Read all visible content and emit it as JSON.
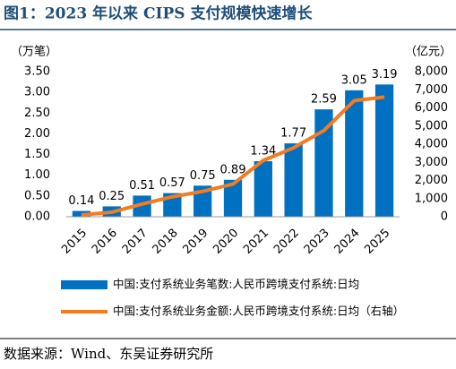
{
  "title": "图1：2023 年以来 CIPS 支付规模快速增长",
  "source": "数据来源：Wind、东吴证券研究所",
  "chart_data": {
    "type": "combo",
    "y_label": "（万笔）",
    "y2_label": "（亿元）",
    "categories": [
      "2015",
      "2016",
      "2017",
      "2018",
      "2019",
      "2020",
      "2021",
      "2022",
      "2023",
      "2024",
      "2025"
    ],
    "series": [
      {
        "name": "中国:支付系统业务笔数:人民币跨境支付系统:日均",
        "type": "bar",
        "color": "#0070c0",
        "values": [
          0.14,
          0.25,
          0.51,
          0.57,
          0.75,
          0.89,
          1.34,
          1.77,
          2.59,
          3.05,
          3.19
        ]
      },
      {
        "name": "中国:支付系统业务金额:人民币跨境支付系统:日均（右轴）",
        "type": "line",
        "axis": "y2",
        "color": "#f47b20",
        "values": [
          100,
          250,
          700,
          1100,
          1400,
          1800,
          3100,
          3800,
          4750,
          6400,
          6600
        ]
      }
    ],
    "ylim": [
      0,
      3.5
    ],
    "yticks": [
      {
        "value": 0,
        "label": "0.00"
      },
      {
        "value": 0.5,
        "label": "0.50"
      },
      {
        "value": 1,
        "label": "1.00"
      },
      {
        "value": 1.5,
        "label": "1.50"
      },
      {
        "value": 2,
        "label": "2.00"
      },
      {
        "value": 2.5,
        "label": "2.50"
      },
      {
        "value": 3,
        "label": "3.00"
      },
      {
        "value": 3.5,
        "label": "3.50"
      }
    ],
    "y2lim": [
      0,
      8000
    ],
    "y2ticks": [
      0,
      {
        "value": 1000,
        "label": "1,000"
      },
      {
        "value": 2000,
        "label": "2,000"
      },
      {
        "value": 3000,
        "label": "3,000"
      },
      {
        "value": 4000,
        "label": "4,000"
      },
      {
        "value": 5000,
        "label": "5,000"
      },
      {
        "value": 6000,
        "label": "6,000"
      },
      {
        "value": 7000,
        "label": "7,000"
      },
      {
        "value": 8000,
        "label": "8,000"
      }
    ]
  }
}
